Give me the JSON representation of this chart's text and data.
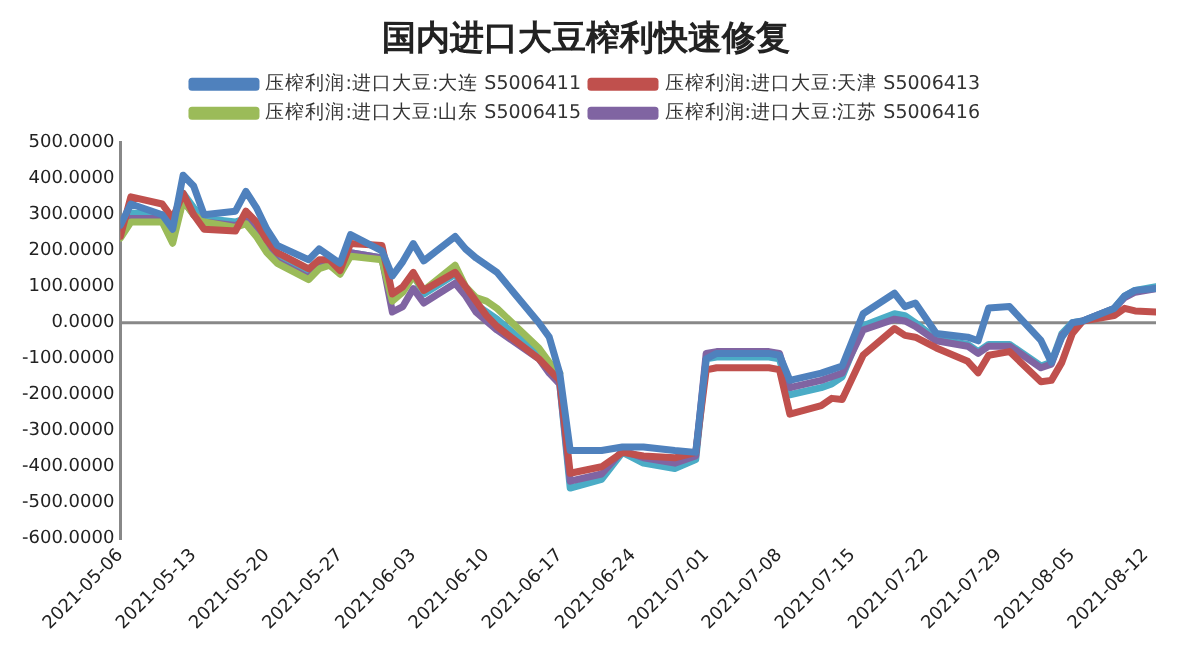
{
  "chart_data": {
    "type": "line",
    "title": "国内进口大豆榨利快速修复",
    "x": [
      "2021-05-06",
      "2021-05-07",
      "2021-05-10",
      "2021-05-11",
      "2021-05-12",
      "2021-05-13",
      "2021-05-14",
      "2021-05-17",
      "2021-05-18",
      "2021-05-19",
      "2021-05-20",
      "2021-05-21",
      "2021-05-24",
      "2021-05-25",
      "2021-05-26",
      "2021-05-27",
      "2021-05-28",
      "2021-05-31",
      "2021-06-01",
      "2021-06-02",
      "2021-06-03",
      "2021-06-04",
      "2021-06-07",
      "2021-06-08",
      "2021-06-09",
      "2021-06-10",
      "2021-06-11",
      "2021-06-15",
      "2021-06-16",
      "2021-06-17",
      "2021-06-18",
      "2021-06-21",
      "2021-06-23",
      "2021-06-25",
      "2021-06-28",
      "2021-06-30",
      "2021-07-01",
      "2021-07-02",
      "2021-07-07",
      "2021-07-08",
      "2021-07-09",
      "2021-07-12",
      "2021-07-13",
      "2021-07-14",
      "2021-07-16",
      "2021-07-19",
      "2021-07-20",
      "2021-07-21",
      "2021-07-23",
      "2021-07-26",
      "2021-07-27",
      "2021-07-28",
      "2021-07-30",
      "2021-08-02",
      "2021-08-03",
      "2021-08-04",
      "2021-08-05",
      "2021-08-06",
      "2021-08-09",
      "2021-08-10",
      "2021-08-11",
      "2021-08-13"
    ],
    "series": [
      {
        "name": "压榨利润:进口大豆:大连 S5006411",
        "color": "#4f81bd",
        "values": [
          271,
          330,
          300,
          260,
          410,
          380,
          300,
          310,
          365,
          320,
          260,
          215,
          175,
          205,
          185,
          165,
          245,
          200,
          130,
          170,
          220,
          172,
          240,
          205,
          180,
          160,
          140,
          0,
          -40,
          -140,
          -355,
          -355,
          -345,
          -345,
          -355,
          -360,
          -100,
          -85,
          -85,
          -90,
          -160,
          -140,
          -130,
          -120,
          25,
          82,
          45,
          55,
          -30,
          -40,
          -50,
          41,
          45,
          -49,
          -110,
          -40,
          0,
          5,
          40,
          74,
          90,
          95
        ]
      },
      {
        "name": "压榨利润:进口大豆:天津 S5006413",
        "color": "#c0504d",
        "values": [
          240,
          350,
          330,
          290,
          360,
          300,
          260,
          255,
          310,
          280,
          230,
          195,
          150,
          175,
          175,
          145,
          220,
          215,
          80,
          100,
          140,
          90,
          140,
          100,
          60,
          20,
          -10,
          -100,
          -130,
          -160,
          -418,
          -400,
          -360,
          -370,
          -375,
          -360,
          -131,
          -125,
          -125,
          -130,
          -254,
          -230,
          -210,
          -213,
          -90,
          -16,
          -35,
          -40,
          -70,
          -107,
          -139,
          -90,
          -80,
          -164,
          -160,
          -110,
          -30,
          5,
          20,
          40,
          33,
          30
        ]
      },
      {
        "name": "压榨利润:进口大豆:山东 S5006415",
        "color": "#9bbb59",
        "values": [
          235,
          280,
          280,
          221,
          340,
          300,
          280,
          265,
          275,
          240,
          195,
          165,
          120,
          150,
          160,
          135,
          185,
          175,
          60,
          85,
          130,
          90,
          160,
          100,
          70,
          60,
          40,
          -70,
          -110,
          -140,
          null,
          null,
          null,
          null,
          null,
          null,
          null,
          null,
          null,
          null,
          null,
          null,
          null,
          null,
          null,
          null,
          null,
          null,
          null,
          null,
          null,
          null,
          null,
          null,
          null,
          null,
          null,
          null,
          null,
          null,
          null,
          null
        ]
      },
      {
        "name": "压榨利润:进口大豆:江苏 S5006416",
        "color": "#8064a2",
        "values": [
          250,
          290,
          290,
          240,
          340,
          300,
          280,
          270,
          285,
          250,
          205,
          170,
          125,
          160,
          160,
          140,
          195,
          180,
          30,
          45,
          95,
          55,
          110,
          75,
          30,
          5,
          -20,
          -100,
          -140,
          -170,
          -440,
          -420,
          -355,
          -375,
          -390,
          -370,
          -85,
          -80,
          -80,
          -85,
          -180,
          -160,
          -150,
          -140,
          -20,
          10,
          5,
          -10,
          -50,
          -65,
          -85,
          -65,
          -65,
          -125,
          -115,
          -35,
          -5,
          5,
          40,
          70,
          85,
          95
        ]
      },
      {
        "color": "#4bacc6",
        "values": [
          265,
          305,
          300,
          262,
          360,
          320,
          290,
          280,
          290,
          250,
          210,
          175,
          130,
          155,
          170,
          140,
          195,
          180,
          70,
          90,
          135,
          80,
          135,
          90,
          50,
          30,
          10,
          -90,
          -130,
          -170,
          -459,
          -435,
          -360,
          -390,
          -405,
          -380,
          -100,
          -95,
          -95,
          -100,
          -200,
          -180,
          -170,
          -150,
          -8,
          25,
          20,
          0,
          -45,
          -60,
          -80,
          -60,
          -60,
          -120,
          -110,
          -30,
          0,
          5,
          40,
          74,
          90,
          100
        ]
      }
    ],
    "xlim": [
      "2021-05-06",
      "2021-08-13"
    ],
    "xticks": [
      "2021-05-06",
      "2021-05-13",
      "2021-05-20",
      "2021-05-27",
      "2021-06-03",
      "2021-06-10",
      "2021-06-17",
      "2021-06-24",
      "2021-07-01",
      "2021-07-08",
      "2021-07-15",
      "2021-07-22",
      "2021-07-29",
      "2021-08-05",
      "2021-08-12"
    ],
    "ylim": [
      -600,
      500
    ],
    "yticks": [
      {
        "value": 500,
        "label": "500.0000"
      },
      {
        "value": 400,
        "label": "400.0000"
      },
      {
        "value": 300,
        "label": "300.0000"
      },
      {
        "value": 200,
        "label": "200.0000"
      },
      {
        "value": 100,
        "label": "100.0000"
      },
      {
        "value": 0,
        "label": "0.0000"
      },
      {
        "value": -100,
        "label": "-100.0000"
      },
      {
        "value": -200,
        "label": "-200.0000"
      },
      {
        "value": -300,
        "label": "-300.0000"
      },
      {
        "value": -400,
        "label": "-400.0000"
      },
      {
        "value": -500,
        "label": "-500.0000"
      },
      {
        "value": -600,
        "label": "-600.0000"
      }
    ],
    "ref_lines": [
      {
        "axis": "y",
        "value": 0,
        "color": "#888888"
      }
    ],
    "legend": "top",
    "marker": "none",
    "line_style": "solid"
  }
}
